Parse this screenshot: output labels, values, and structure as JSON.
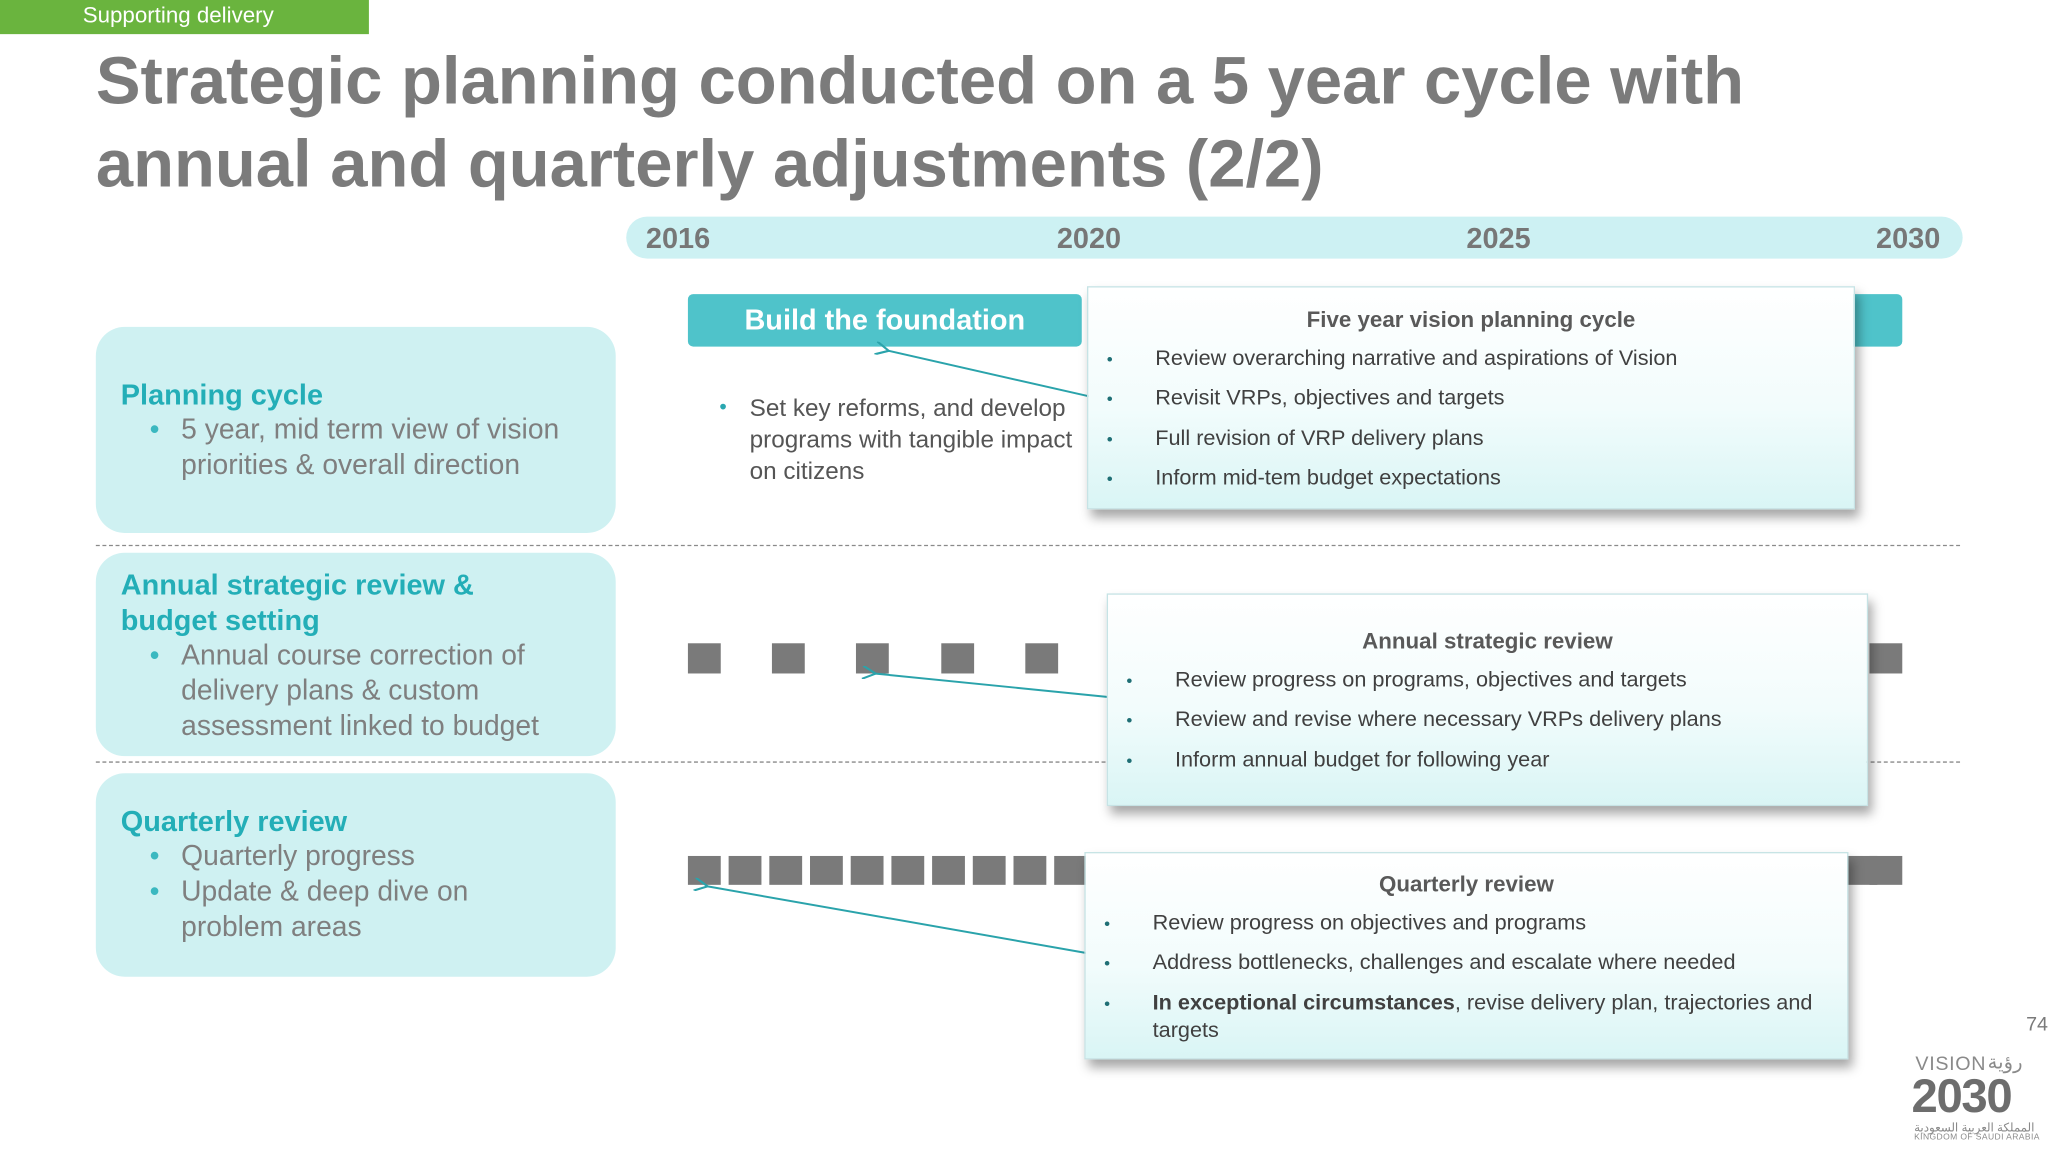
{
  "tag": "Supporting delivery",
  "title_line1": "Strategic planning conducted on a 5 year cycle with",
  "title_line2": "annual and quarterly adjustments (2/2)",
  "timeline_years": [
    "2016",
    "2020",
    "2025",
    "2030"
  ],
  "left_boxes": [
    {
      "heading": "Planning cycle",
      "bullets": [
        "5 year, mid term view of vision priorities & overall direction"
      ]
    },
    {
      "heading": "Annual strategic review & budget setting",
      "bullets": [
        "Annual course correction of delivery plans & custom assessment linked to budget"
      ]
    },
    {
      "heading": "Quarterly review",
      "bullets": [
        "Quarterly progress",
        "Update & deep dive on problem areas"
      ]
    }
  ],
  "phase_label": "Build the foundation",
  "phase_bullet": "Set key reforms, and develop programs with tangible impact on citizens",
  "cards": {
    "five_year": {
      "title": "Five year vision planning cycle",
      "bullets": [
        "Review overarching narrative and aspirations of Vision",
        "Revisit VRPs, objectives and targets",
        "Full revision of VRP delivery plans",
        "Inform mid-tem budget expectations"
      ]
    },
    "annual": {
      "title": "Annual strategic review",
      "bullets": [
        "Review progress on programs, objectives and targets",
        "Review and revise where necessary VRPs delivery plans",
        "Inform annual budget for following year"
      ]
    },
    "quarterly": {
      "title": "Quarterly review",
      "bullets": [
        "Review progress on objectives and programs",
        "Address bottlenecks, challenges and escalate where needed"
      ],
      "last_bullet_bold": "In exceptional circumstances",
      "last_bullet_rest": ", revise delivery plan, trajectories and targets"
    }
  },
  "page_number": "74",
  "logo": {
    "vision": "VISION",
    "arabic_top": "رؤية",
    "year": "2030",
    "arabic_kingdom": "المملكة العربية السعودية",
    "kingdom": "KINGDOM OF SAUDI ARABIA"
  },
  "colors": {
    "accent_teal": "#23aeb7",
    "tag_green": "#6ab43e",
    "box_fill": "#cff1f2",
    "marker_gray": "#7a7a7a"
  }
}
